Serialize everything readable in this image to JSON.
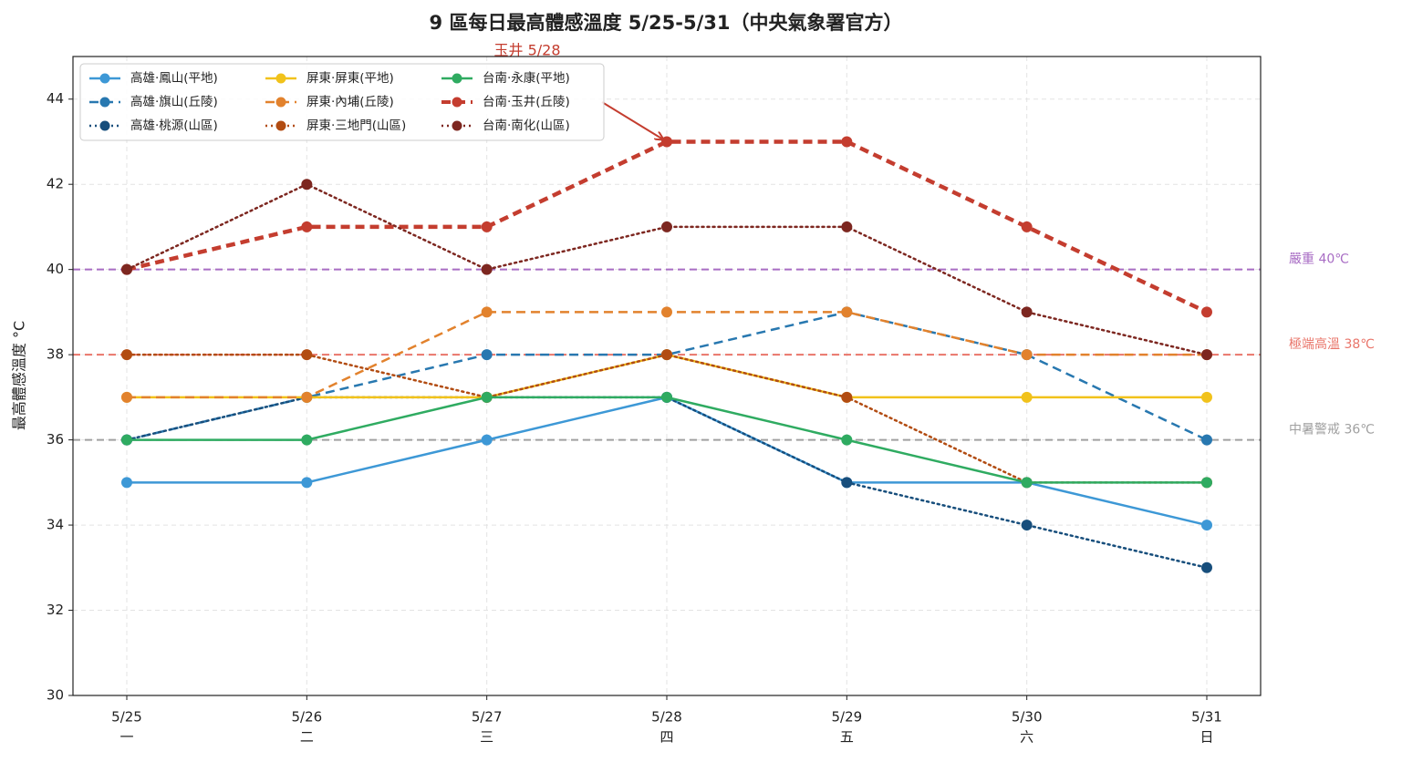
{
  "chart_data": {
    "type": "line",
    "title": "9 區每日最高體感溫度 5/25-5/31（中央氣象署官方）",
    "y_label": "最高體感溫度 °C",
    "categories": [
      "5/25",
      "5/26",
      "5/27",
      "5/28",
      "5/29",
      "5/30",
      "5/31"
    ],
    "category_sublabels": [
      "一",
      "二",
      "三",
      "四",
      "五",
      "六",
      "日"
    ],
    "ylim": [
      30,
      45
    ],
    "yticks": [
      30,
      32,
      34,
      36,
      38,
      40,
      42,
      44
    ],
    "grid": true,
    "legend": "upper left",
    "series": [
      {
        "name": "高雄·鳳山(平地)",
        "color": "#3d98d6",
        "linestyle": "solid",
        "linewidth": 2.5,
        "values": [
          35,
          35,
          36,
          37,
          35,
          35,
          34
        ]
      },
      {
        "name": "高雄·旗山(丘陵)",
        "color": "#2878b0",
        "linestyle": "dashed",
        "linewidth": 2.5,
        "values": [
          36,
          37,
          38,
          38,
          39,
          38,
          36
        ]
      },
      {
        "name": "高雄·桃源(山區)",
        "color": "#174e7c",
        "linestyle": "dotted",
        "linewidth": 2.5,
        "values": [
          36,
          37,
          37,
          37,
          35,
          34,
          33
        ]
      },
      {
        "name": "屏東·屏東(平地)",
        "color": "#f1c21b",
        "linestyle": "solid",
        "linewidth": 2.5,
        "values": [
          37,
          37,
          37,
          38,
          37,
          37,
          37
        ]
      },
      {
        "name": "屏東·內埔(丘陵)",
        "color": "#e2822d",
        "linestyle": "dashed",
        "linewidth": 2.5,
        "values": [
          37,
          37,
          39,
          39,
          39,
          38,
          38
        ]
      },
      {
        "name": "屏東·三地門(山區)",
        "color": "#b24c12",
        "linestyle": "dotted",
        "linewidth": 2.5,
        "values": [
          38,
          38,
          37,
          38,
          37,
          35,
          35
        ]
      },
      {
        "name": "台南·永康(平地)",
        "color": "#2fab61",
        "linestyle": "solid",
        "linewidth": 2.5,
        "values": [
          36,
          36,
          37,
          37,
          36,
          35,
          35
        ]
      },
      {
        "name": "台南·玉井(丘陵)",
        "color": "#c43d2f",
        "linestyle": "dashed",
        "linewidth": 4.5,
        "values": [
          40,
          41,
          41,
          43,
          43,
          41,
          39
        ]
      },
      {
        "name": "台南·南化(山區)",
        "color": "#7d2720",
        "linestyle": "dotted",
        "linewidth": 2.5,
        "values": [
          40,
          42,
          40,
          41,
          41,
          39,
          38
        ]
      }
    ],
    "reference_lines": [
      {
        "value": 40,
        "label": "嚴重 40℃",
        "color": "#a86cc4"
      },
      {
        "value": 38,
        "label": "極端高溫 38℃",
        "color": "#e9756a"
      },
      {
        "value": 36,
        "label": "中暑警戒 36℃",
        "color": "#a0a0a0"
      }
    ],
    "annotation": {
      "text": "玉井 5/28",
      "color": "#c43d2f"
    }
  }
}
